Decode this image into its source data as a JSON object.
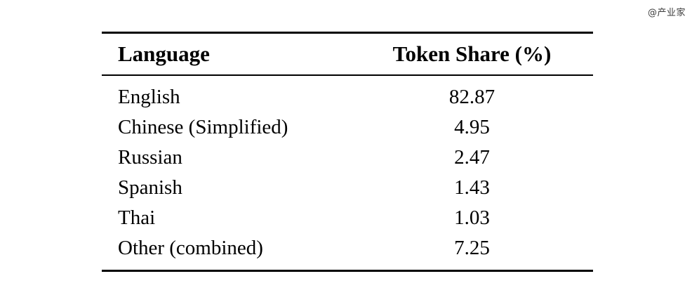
{
  "watermark": "@产业家",
  "table": {
    "headers": {
      "language": "Language",
      "token_share": "Token Share (%)"
    },
    "rows": [
      {
        "language": "English",
        "share": "82.87"
      },
      {
        "language": "Chinese (Simplified)",
        "share": "4.95"
      },
      {
        "language": "Russian",
        "share": "2.47"
      },
      {
        "language": "Spanish",
        "share": "1.43"
      },
      {
        "language": "Thai",
        "share": "1.03"
      },
      {
        "language": "Other (combined)",
        "share": "7.25"
      }
    ]
  },
  "chart_data": {
    "type": "table",
    "title": "",
    "columns": [
      "Language",
      "Token Share (%)"
    ],
    "categories": [
      "English",
      "Chinese (Simplified)",
      "Russian",
      "Spanish",
      "Thai",
      "Other (combined)"
    ],
    "values": [
      82.87,
      4.95,
      2.47,
      1.43,
      1.03,
      7.25
    ]
  }
}
